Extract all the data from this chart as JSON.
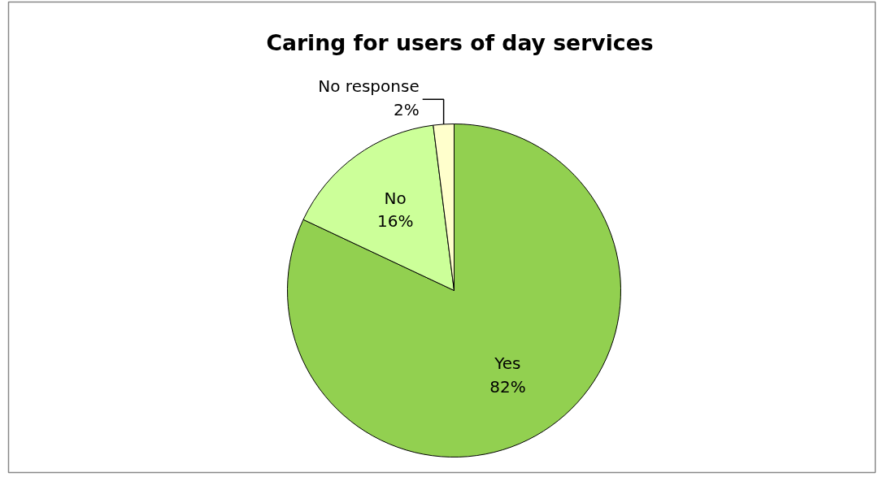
{
  "chart_data": {
    "type": "pie",
    "title": "Caring for users of day services",
    "categories": [
      "Yes",
      "No",
      "No response"
    ],
    "values": [
      82,
      16,
      2
    ],
    "colors": [
      "#92d050",
      "#ccff99",
      "#ffffcc"
    ],
    "value_labels": [
      "82%",
      "16%",
      "2%"
    ]
  }
}
